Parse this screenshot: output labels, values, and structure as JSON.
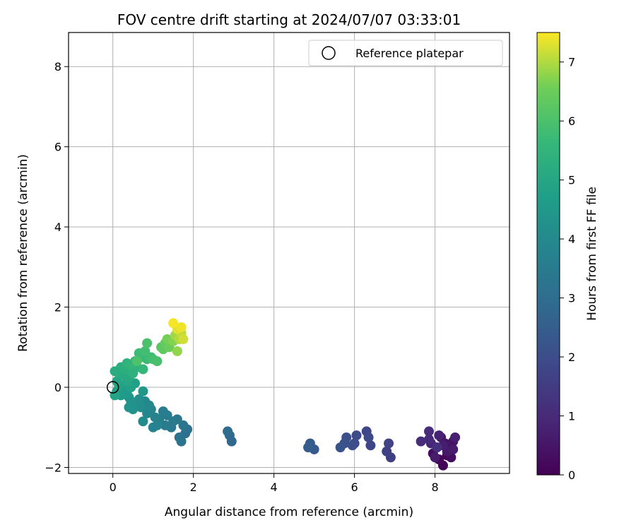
{
  "chart_data": {
    "type": "scatter",
    "title": "FOV centre drift starting at 2024/07/07 03:33:01",
    "xlabel": "Angular distance from reference (arcmin)",
    "ylabel": "Rotation from reference (arcmin)",
    "xlim": [
      -1.1,
      9.85
    ],
    "ylim": [
      -2.15,
      8.85
    ],
    "xticks": [
      "0",
      "2",
      "4",
      "6",
      "8"
    ],
    "yticks": [
      "−2",
      "0",
      "2",
      "4",
      "6",
      "8"
    ],
    "grid": true,
    "legend": {
      "position": "top-right",
      "entries": [
        "Reference platepar"
      ]
    },
    "colorbar": {
      "label": "Hours from first FF file",
      "range": [
        0,
        7.5
      ],
      "ticks": [
        "0",
        "1",
        "2",
        "3",
        "4",
        "5",
        "6",
        "7"
      ],
      "colormap": "viridis"
    },
    "reference_point": {
      "x": 0,
      "y": 0
    },
    "points": [
      {
        "x": 8.3,
        "y": -1.7,
        "t": 0.05
      },
      {
        "x": 8.2,
        "y": -1.95,
        "t": 0.1
      },
      {
        "x": 8.1,
        "y": -1.8,
        "t": 0.15
      },
      {
        "x": 8.35,
        "y": -1.55,
        "t": 0.2
      },
      {
        "x": 7.95,
        "y": -1.65,
        "t": 0.25
      },
      {
        "x": 8.4,
        "y": -1.75,
        "t": 0.3
      },
      {
        "x": 8.05,
        "y": -1.5,
        "t": 0.35
      },
      {
        "x": 8.25,
        "y": -1.4,
        "t": 0.4
      },
      {
        "x": 8.45,
        "y": -1.35,
        "t": 0.45
      },
      {
        "x": 8.15,
        "y": -1.25,
        "t": 0.5
      },
      {
        "x": 8.3,
        "y": -1.6,
        "t": 0.55
      },
      {
        "x": 8.45,
        "y": -1.55,
        "t": 0.6
      },
      {
        "x": 8.0,
        "y": -1.75,
        "t": 0.65
      },
      {
        "x": 8.2,
        "y": -1.45,
        "t": 0.7
      },
      {
        "x": 8.5,
        "y": -1.25,
        "t": 0.75
      },
      {
        "x": 8.1,
        "y": -1.2,
        "t": 0.8
      },
      {
        "x": 7.9,
        "y": -1.4,
        "t": 0.9
      },
      {
        "x": 7.85,
        "y": -1.3,
        "t": 1.0
      },
      {
        "x": 7.85,
        "y": -1.1,
        "t": 1.05
      },
      {
        "x": 7.65,
        "y": -1.35,
        "t": 1.1
      },
      {
        "x": 8.05,
        "y": -1.5,
        "t": 1.15
      },
      {
        "x": 6.9,
        "y": -1.75,
        "t": 1.6
      },
      {
        "x": 6.8,
        "y": -1.6,
        "t": 1.65
      },
      {
        "x": 6.85,
        "y": -1.4,
        "t": 1.7
      },
      {
        "x": 6.4,
        "y": -1.45,
        "t": 1.8
      },
      {
        "x": 6.3,
        "y": -1.1,
        "t": 1.85
      },
      {
        "x": 6.35,
        "y": -1.25,
        "t": 1.9
      },
      {
        "x": 6.05,
        "y": -1.2,
        "t": 1.95
      },
      {
        "x": 6.0,
        "y": -1.4,
        "t": 2.0
      },
      {
        "x": 5.95,
        "y": -1.45,
        "t": 2.05
      },
      {
        "x": 5.8,
        "y": -1.25,
        "t": 2.1
      },
      {
        "x": 5.75,
        "y": -1.4,
        "t": 2.15
      },
      {
        "x": 5.65,
        "y": -1.5,
        "t": 2.2
      },
      {
        "x": 5.0,
        "y": -1.55,
        "t": 2.4
      },
      {
        "x": 4.9,
        "y": -1.4,
        "t": 2.45
      },
      {
        "x": 4.85,
        "y": -1.5,
        "t": 2.5
      },
      {
        "x": 2.95,
        "y": -1.35,
        "t": 2.85
      },
      {
        "x": 2.9,
        "y": -1.2,
        "t": 2.9
      },
      {
        "x": 2.85,
        "y": -1.1,
        "t": 2.95
      },
      {
        "x": 1.8,
        "y": -1.15,
        "t": 3.1
      },
      {
        "x": 1.85,
        "y": -1.05,
        "t": 3.15
      },
      {
        "x": 1.7,
        "y": -1.35,
        "t": 3.2
      },
      {
        "x": 1.65,
        "y": -1.25,
        "t": 3.25
      },
      {
        "x": 1.75,
        "y": -0.95,
        "t": 3.3
      },
      {
        "x": 1.6,
        "y": -0.8,
        "t": 3.35
      },
      {
        "x": 1.45,
        "y": -1.0,
        "t": 3.4
      },
      {
        "x": 1.5,
        "y": -0.85,
        "t": 3.45
      },
      {
        "x": 1.3,
        "y": -0.95,
        "t": 3.5
      },
      {
        "x": 1.35,
        "y": -0.7,
        "t": 3.55
      },
      {
        "x": 1.25,
        "y": -0.6,
        "t": 3.6
      },
      {
        "x": 1.15,
        "y": -0.8,
        "t": 3.65
      },
      {
        "x": 1.1,
        "y": -0.95,
        "t": 3.7
      },
      {
        "x": 1.0,
        "y": -1.0,
        "t": 3.75
      },
      {
        "x": 1.05,
        "y": -0.75,
        "t": 3.8
      },
      {
        "x": 0.95,
        "y": -0.55,
        "t": 3.85
      },
      {
        "x": 0.85,
        "y": -0.65,
        "t": 3.9
      },
      {
        "x": 0.9,
        "y": -0.45,
        "t": 3.95
      },
      {
        "x": 0.8,
        "y": -0.35,
        "t": 4.0
      },
      {
        "x": 0.75,
        "y": -0.85,
        "t": 4.05
      },
      {
        "x": 0.7,
        "y": -0.5,
        "t": 4.1
      },
      {
        "x": 0.65,
        "y": -0.3,
        "t": 4.15
      },
      {
        "x": 0.55,
        "y": -0.45,
        "t": 4.2
      },
      {
        "x": 0.5,
        "y": -0.55,
        "t": 4.25
      },
      {
        "x": 0.45,
        "y": -0.35,
        "t": 4.3
      },
      {
        "x": 0.4,
        "y": -0.25,
        "t": 4.35
      },
      {
        "x": 0.4,
        "y": -0.5,
        "t": 4.4
      },
      {
        "x": 0.75,
        "y": -0.1,
        "t": 4.45
      },
      {
        "x": 0.35,
        "y": -0.15,
        "t": 4.5
      },
      {
        "x": 0.3,
        "y": -0.05,
        "t": 4.55
      },
      {
        "x": 0.2,
        "y": -0.2,
        "t": 4.6
      },
      {
        "x": 0.1,
        "y": -0.1,
        "t": 4.65
      },
      {
        "x": 0.25,
        "y": 0.05,
        "t": 4.7
      },
      {
        "x": 0.55,
        "y": 0.1,
        "t": 4.75
      },
      {
        "x": 0.45,
        "y": 0.0,
        "t": 4.8
      },
      {
        "x": 0.15,
        "y": 0.05,
        "t": 4.85
      },
      {
        "x": 0.05,
        "y": -0.2,
        "t": 4.9
      },
      {
        "x": 0.1,
        "y": 0.15,
        "t": 4.95
      },
      {
        "x": 0.35,
        "y": 0.15,
        "t": 5.0
      },
      {
        "x": 0.25,
        "y": 0.3,
        "t": 5.05
      },
      {
        "x": 0.4,
        "y": 0.25,
        "t": 5.1
      },
      {
        "x": 0.15,
        "y": 0.35,
        "t": 5.15
      },
      {
        "x": 0.05,
        "y": 0.4,
        "t": 5.2
      },
      {
        "x": 0.2,
        "y": 0.5,
        "t": 5.25
      },
      {
        "x": 0.3,
        "y": 0.45,
        "t": 5.3
      },
      {
        "x": 0.5,
        "y": 0.35,
        "t": 5.35
      },
      {
        "x": 0.6,
        "y": 0.5,
        "t": 5.4
      },
      {
        "x": 0.35,
        "y": 0.6,
        "t": 5.45
      },
      {
        "x": 0.55,
        "y": 0.65,
        "t": 5.5
      },
      {
        "x": 0.45,
        "y": 0.55,
        "t": 5.55
      },
      {
        "x": 0.75,
        "y": 0.45,
        "t": 5.6
      },
      {
        "x": 0.7,
        "y": 0.75,
        "t": 5.65
      },
      {
        "x": 0.85,
        "y": 0.7,
        "t": 5.7
      },
      {
        "x": 0.65,
        "y": 0.85,
        "t": 5.75
      },
      {
        "x": 0.95,
        "y": 0.75,
        "t": 5.8
      },
      {
        "x": 0.8,
        "y": 0.9,
        "t": 5.85
      },
      {
        "x": 1.0,
        "y": 0.7,
        "t": 5.9
      },
      {
        "x": 1.1,
        "y": 0.65,
        "t": 5.95
      },
      {
        "x": 0.85,
        "y": 1.1,
        "t": 6.0
      },
      {
        "x": 0.6,
        "y": 0.65,
        "t": 6.05
      },
      {
        "x": 1.2,
        "y": 1.0,
        "t": 6.2
      },
      {
        "x": 1.25,
        "y": 0.95,
        "t": 6.3
      },
      {
        "x": 1.3,
        "y": 1.1,
        "t": 6.4
      },
      {
        "x": 1.4,
        "y": 1.0,
        "t": 6.5
      },
      {
        "x": 1.35,
        "y": 1.2,
        "t": 6.6
      },
      {
        "x": 1.5,
        "y": 1.15,
        "t": 6.7
      },
      {
        "x": 1.6,
        "y": 0.9,
        "t": 6.8
      },
      {
        "x": 1.55,
        "y": 1.3,
        "t": 6.9
      },
      {
        "x": 1.65,
        "y": 1.2,
        "t": 7.0
      },
      {
        "x": 1.7,
        "y": 1.35,
        "t": 7.1
      },
      {
        "x": 1.75,
        "y": 1.2,
        "t": 7.2
      },
      {
        "x": 1.6,
        "y": 1.45,
        "t": 7.3
      },
      {
        "x": 1.7,
        "y": 1.5,
        "t": 7.4
      },
      {
        "x": 1.5,
        "y": 1.6,
        "t": 7.45
      }
    ]
  }
}
